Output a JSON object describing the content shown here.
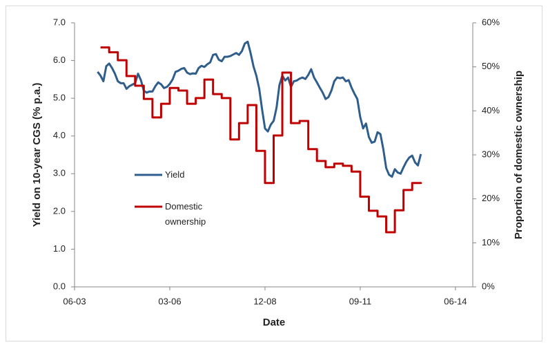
{
  "chart_data": {
    "type": "line",
    "xlabel": "Date",
    "ylabel": "Yield on 10-year CGS (% p.a.)",
    "y2label": "Proportion of domestic ownership",
    "xlim": [
      "06-03",
      "12-14"
    ],
    "xticks": [
      "06-03",
      "03-06",
      "12-08",
      "09-11",
      "06-14"
    ],
    "ylim": [
      0,
      7
    ],
    "yticks": [
      {
        "value": 0,
        "label": "0.0"
      },
      {
        "value": 1,
        "label": "1.0"
      },
      {
        "value": 2,
        "label": "2.0"
      },
      {
        "value": 3,
        "label": "3.0"
      },
      {
        "value": 4,
        "label": "4.0"
      },
      {
        "value": 5,
        "label": "5.0"
      },
      {
        "value": 6,
        "label": "6.0"
      },
      {
        "value": 7,
        "label": "7.0"
      }
    ],
    "y2lim": [
      0,
      60
    ],
    "y2ticks": [
      {
        "value": 0,
        "label": "0%"
      },
      {
        "value": 10,
        "label": "10%"
      },
      {
        "value": 20,
        "label": "20%"
      },
      {
        "value": 30,
        "label": "30%"
      },
      {
        "value": 40,
        "label": "40%"
      },
      {
        "value": 50,
        "label": "50%"
      },
      {
        "value": 60,
        "label": "60%"
      }
    ],
    "grid": false,
    "legend": "center-left",
    "series": [
      {
        "name": "Yield",
        "color": "#2f5d8c",
        "x": [
          "02-04",
          "03-04",
          "04-04",
          "05-04",
          "06-04",
          "07-04",
          "08-04",
          "09-04",
          "10-04",
          "11-04",
          "12-04",
          "01-05",
          "02-05",
          "03-05",
          "04-05",
          "05-05",
          "06-05",
          "07-05",
          "08-05",
          "09-05",
          "10-05",
          "11-05",
          "12-05",
          "01-06",
          "02-06",
          "03-06",
          "04-06",
          "05-06",
          "06-06",
          "07-06",
          "08-06",
          "09-06",
          "10-06",
          "11-06",
          "12-06",
          "01-07",
          "02-07",
          "03-07",
          "04-07",
          "05-07",
          "06-07",
          "07-07",
          "08-07",
          "09-07",
          "10-07",
          "11-07",
          "12-07",
          "01-08",
          "02-08",
          "03-08",
          "04-08",
          "05-08",
          "06-08",
          "07-08",
          "08-08",
          "09-08",
          "10-08",
          "11-08",
          "12-08",
          "01-09",
          "02-09",
          "03-09",
          "04-09",
          "05-09",
          "06-09",
          "07-09",
          "08-09",
          "09-09",
          "10-09",
          "11-09",
          "12-09",
          "01-10",
          "02-10",
          "03-10",
          "04-10",
          "05-10",
          "06-10",
          "07-10",
          "08-10",
          "09-10",
          "10-10",
          "11-10",
          "12-10",
          "01-11",
          "02-11",
          "03-11",
          "04-11",
          "05-11",
          "06-11",
          "07-11",
          "08-11",
          "09-11",
          "10-11",
          "11-11",
          "12-11",
          "01-12",
          "02-12",
          "03-12",
          "04-12",
          "05-12",
          "06-12",
          "07-12",
          "08-12",
          "09-12",
          "10-12",
          "11-12",
          "12-12",
          "01-13",
          "02-13",
          "03-13",
          "04-13",
          "05-13",
          "06-13"
        ],
        "values": [
          5.7,
          5.6,
          5.45,
          5.85,
          5.92,
          5.8,
          5.65,
          5.45,
          5.4,
          5.4,
          5.25,
          5.32,
          5.36,
          5.4,
          5.65,
          5.48,
          5.2,
          5.15,
          5.18,
          5.18,
          5.32,
          5.42,
          5.37,
          5.27,
          5.3,
          5.38,
          5.5,
          5.7,
          5.73,
          5.78,
          5.8,
          5.68,
          5.64,
          5.66,
          5.65,
          5.8,
          5.86,
          5.83,
          5.9,
          5.95,
          6.15,
          6.17,
          6.02,
          5.98,
          6.1,
          6.1,
          6.12,
          6.16,
          6.2,
          6.15,
          6.25,
          6.45,
          6.5,
          6.2,
          5.85,
          5.6,
          5.25,
          4.7,
          4.2,
          4.12,
          4.3,
          4.4,
          4.75,
          5.35,
          5.6,
          5.47,
          5.55,
          5.3,
          5.45,
          5.47,
          5.52,
          5.55,
          5.51,
          5.62,
          5.77,
          5.55,
          5.42,
          5.28,
          5.15,
          4.98,
          5.03,
          5.2,
          5.45,
          5.55,
          5.53,
          5.55,
          5.45,
          5.48,
          5.28,
          5.12,
          4.98,
          4.5,
          4.2,
          4.33,
          3.97,
          3.82,
          3.85,
          4.1,
          4.05,
          3.65,
          3.15,
          2.97,
          2.92,
          3.12,
          3.03,
          3.0,
          3.17,
          3.32,
          3.43,
          3.48,
          3.3,
          3.22,
          3.52
        ]
      },
      {
        "name": "Domestic ownership",
        "color": "#c00000",
        "axis": "y2",
        "step": true,
        "x": [
          "03-04",
          "06-04",
          "09-04",
          "12-04",
          "03-05",
          "06-05",
          "09-05",
          "12-05",
          "03-06",
          "06-06",
          "09-06",
          "12-06",
          "03-07",
          "06-07",
          "09-07",
          "12-07",
          "03-08",
          "06-08",
          "09-08",
          "12-08",
          "03-09",
          "06-09",
          "09-09",
          "12-09",
          "03-10",
          "06-10",
          "09-10",
          "12-10",
          "03-11",
          "06-11",
          "09-11",
          "12-11",
          "03-12",
          "06-12",
          "09-12",
          "12-12",
          "03-13",
          "06-13"
        ],
        "values": [
          54.4,
          53.3,
          51.5,
          47.9,
          45.7,
          42.7,
          38.5,
          41.6,
          45.2,
          44.6,
          41.6,
          42.9,
          47.1,
          43.8,
          42.9,
          33.5,
          37.2,
          41.3,
          30.9,
          23.6,
          34.4,
          48.7,
          37.2,
          37.7,
          31.3,
          28.6,
          27.2,
          28.0,
          27.5,
          26.2,
          20.5,
          17.3,
          16.0,
          12.4,
          17.4,
          22.0,
          23.6,
          23.4
        ]
      }
    ]
  }
}
